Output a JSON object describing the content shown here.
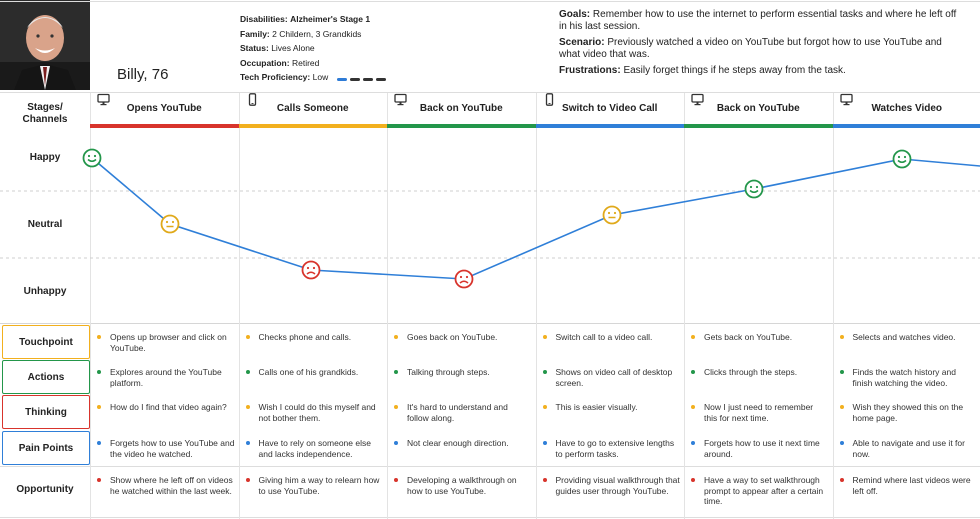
{
  "persona": {
    "name": "Billy, 76",
    "disabilities_label": "Disabilities:",
    "disabilities": "Alzheimer's Stage 1",
    "family_label": "Family:",
    "family": "2 Childern, 3 Grandkids",
    "status_label": "Status:",
    "status": "Lives Alone",
    "occupation_label": "Occupation:",
    "occupation": "Retired",
    "tech_label": "Tech Proficiency:",
    "tech": "Low",
    "tech_level": 0.25
  },
  "context": {
    "goals_label": "Goals:",
    "goals": "Remember how to use the internet to perform essential tasks and where he left off in his last session.",
    "scenario_label": "Scenario:",
    "scenario": "Previously watched a video on YouTube but forgot how to use YouTube and what video that was.",
    "frustrations_label": "Frustrations:",
    "frustrations": "Easily forget things if he steps away from the task."
  },
  "corner_label": "Stages/\nChannels",
  "emotion_levels": [
    "Happy",
    "Neutral",
    "Unhappy"
  ],
  "stages": [
    {
      "label": "Opens YouTube",
      "device": "desktop-icon",
      "color": "#d8342c",
      "emotion": "happy",
      "emotion_value": 3.0
    },
    {
      "label": "Calls Someone",
      "device": "phone-icon",
      "color": "#f2b01e",
      "emotion": "neutral",
      "emotion_value": 2.0
    },
    {
      "label": "Back on YouTube",
      "device": "desktop-icon",
      "color": "#23964a",
      "emotion": "unhappy",
      "emotion_value": 1.0
    },
    {
      "label": "Switch to Video Call",
      "device": "phone-icon",
      "color": "#2f7fd8",
      "emotion": "unhappy",
      "emotion_value": 0.85
    },
    {
      "label": "Back on YouTube",
      "device": "desktop-icon",
      "color": "#23964a",
      "emotion": "neutral",
      "emotion_value": 2.15
    },
    {
      "label": "Watches Video",
      "device": "desktop-icon",
      "color": "#2f7fd8",
      "emotion": "happy",
      "emotion_value": 2.55
    }
  ],
  "emotion_trailing_value": 3.0,
  "rows": [
    {
      "label": "Touchpoint",
      "border": "#f2b01e",
      "dot": "#f2b01e",
      "cells": [
        "Opens up browser and click on YouTube.",
        "Checks phone and calls.",
        "Goes back on YouTube.",
        "Switch call to a video call.",
        "Gets back on YouTube.",
        "Selects and watches video."
      ]
    },
    {
      "label": "Actions",
      "border": "#23964a",
      "dot": "#23964a",
      "cells": [
        "Explores around the YouTube platform.",
        "Calls one of his grandkids.",
        "Talking through steps.",
        "Shows on video call of desktop screen.",
        "Clicks through the steps.",
        "Finds the watch history and finish watching the video."
      ]
    },
    {
      "label": "Thinking",
      "border": "#d8342c",
      "dot": "#f2b01e",
      "cells": [
        "How do I find that video again?",
        "Wish I could do this myself and not bother them.",
        "It's hard to understand and follow along.",
        "This is easier visually.",
        "Now I just need to remember this for next time.",
        "Wish they showed this on the home page."
      ]
    },
    {
      "label": "Pain Points",
      "border": "#2f7fd8",
      "dot": "#2f7fd8",
      "cells": [
        "Forgets how to use YouTube and the video he watched.",
        "Have to rely on someone else and lacks independence.",
        "Not clear enough direction.",
        "Have to go to extensive lengths to perform tasks.",
        "Forgets how to use it next time around.",
        "Able to navigate and use it for now."
      ]
    },
    {
      "label": "Opportunity",
      "border": "",
      "dot": "#d8342c",
      "cells": [
        "Show where he left off on videos he watched within the last week.",
        "Giving him a way to relearn how to use YouTube.",
        "Developing a walkthrough on how to use YouTube.",
        "Providing visual walkthrough that guides user through YouTube.",
        "Have a way to set walkthrough prompt to appear after a certain time.",
        "Remind where last videos were left off."
      ]
    }
  ],
  "colors": {
    "happy": "#23964a",
    "neutral": "#e0a91a",
    "unhappy": "#d8342c",
    "line": "#2f7fd8"
  }
}
